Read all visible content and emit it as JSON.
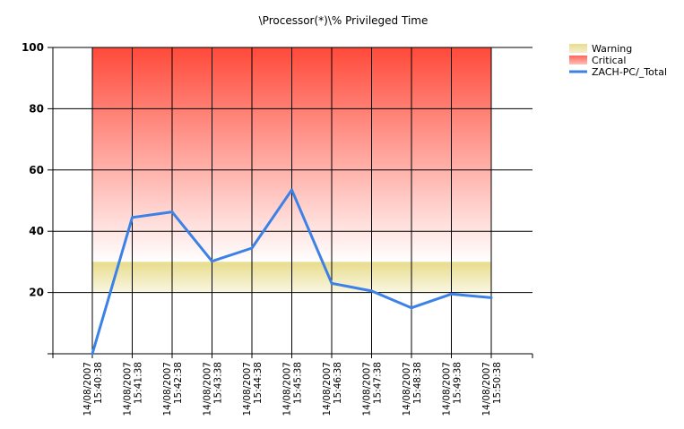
{
  "chart_data": {
    "type": "line",
    "title": "\\Processor(*)\\% Privileged Time",
    "xlabel": "",
    "ylabel": "",
    "ylim": [
      0,
      100
    ],
    "yticks": [
      20,
      40,
      60,
      80,
      100
    ],
    "ytick_labels": [
      "20",
      "40",
      "60",
      "80",
      "100"
    ],
    "grid": true,
    "legend_position": "top-right",
    "categories": [
      {
        "date": "14/08/2007",
        "time": "15:40:38"
      },
      {
        "date": "14/08/2007",
        "time": "15:41:38"
      },
      {
        "date": "14/08/2007",
        "time": "15:42:38"
      },
      {
        "date": "14/08/2007",
        "time": "15:43:38"
      },
      {
        "date": "14/08/2007",
        "time": "15:44:38"
      },
      {
        "date": "14/08/2007",
        "time": "15:45:38"
      },
      {
        "date": "14/08/2007",
        "time": "15:46:38"
      },
      {
        "date": "14/08/2007",
        "time": "15:47:38"
      },
      {
        "date": "14/08/2007",
        "time": "15:48:38"
      },
      {
        "date": "14/08/2007",
        "time": "15:49:38"
      },
      {
        "date": "14/08/2007",
        "time": "15:50:38"
      }
    ],
    "bands": [
      {
        "name": "Warning",
        "y_from": 20,
        "y_to": 30,
        "color": "#e8dc8c"
      },
      {
        "name": "Critical",
        "y_from": 30,
        "y_to": 100,
        "color": "#ff4a3a"
      }
    ],
    "series": [
      {
        "name": "ZACH-PC/_Total",
        "color": "#3c82e6",
        "values": [
          0,
          44.5,
          46.3,
          30.2,
          34.5,
          53.5,
          23,
          20.5,
          15,
          19.5,
          18.3
        ]
      }
    ]
  }
}
